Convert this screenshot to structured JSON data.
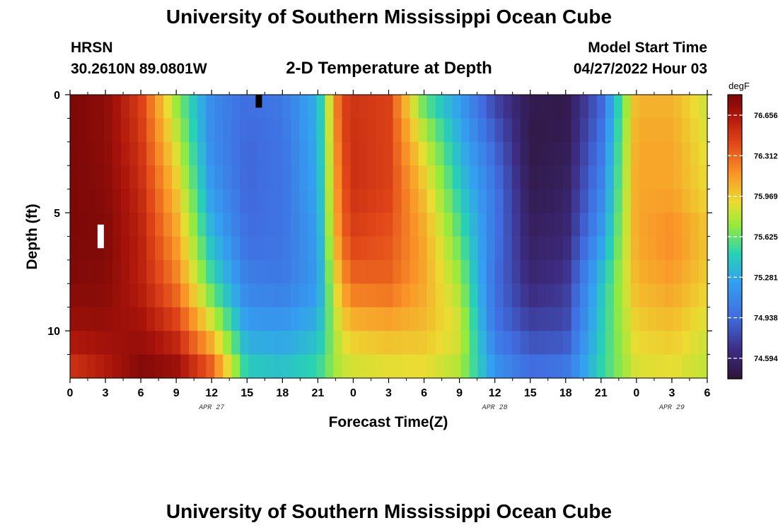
{
  "header": {
    "title": "University of Southern Mississippi Ocean Cube",
    "station": "HRSN",
    "coordinates": "30.2610N  89.0801W",
    "subtitle": "2-D Temperature at Depth",
    "model_start_label": "Model Start Time",
    "model_start_value": "04/27/2022 Hour 03"
  },
  "footer": {
    "title": "University of Southern Mississippi Ocean Cube"
  },
  "chart_data": {
    "type": "heatmap",
    "title": "2-D Temperature at Depth",
    "xlabel": "Forecast Time(Z)",
    "ylabel": "Depth (ft)",
    "x_hours": [
      0,
      54
    ],
    "y_depth_ft": [
      0,
      12
    ],
    "x_tick_labels": [
      "0",
      "3",
      "6",
      "9",
      "12",
      "15",
      "18",
      "21",
      "0",
      "3",
      "6",
      "9",
      "12",
      "15",
      "18",
      "21",
      "0",
      "3",
      "6"
    ],
    "date_labels": [
      {
        "hour": 12,
        "label": "APR 27"
      },
      {
        "hour": 36,
        "label": "APR 28"
      },
      {
        "hour": 51,
        "label": "APR 29"
      }
    ],
    "y_tick_labels": [
      "0",
      "5",
      "10"
    ],
    "colorbar": {
      "unit": "degF",
      "range": [
        74.42,
        76.83
      ],
      "tick_labels": [
        "76.656",
        "76.312",
        "75.969",
        "75.625",
        "75.281",
        "74.938",
        "74.594"
      ]
    },
    "temperature_degF": {
      "depth_rows_ft": [
        0,
        2,
        4,
        6,
        8,
        10,
        12
      ],
      "time_hours": [
        0,
        3,
        6,
        9,
        12,
        15,
        18,
        21,
        23,
        24,
        27,
        30,
        33,
        36,
        39,
        42,
        45,
        48,
        51,
        54
      ],
      "values": [
        [
          76.82,
          76.76,
          76.45,
          75.7,
          75.12,
          74.96,
          75.02,
          75.32,
          76.45,
          76.5,
          76.45,
          75.55,
          75.2,
          74.75,
          74.5,
          74.48,
          74.9,
          76.05,
          76.05,
          75.82
        ],
        [
          76.82,
          76.76,
          76.5,
          75.85,
          75.12,
          74.92,
          74.98,
          75.3,
          76.4,
          76.52,
          76.45,
          75.85,
          75.32,
          74.9,
          74.47,
          74.5,
          75.0,
          76.1,
          76.1,
          75.88
        ],
        [
          76.82,
          76.78,
          76.55,
          76.0,
          75.2,
          74.92,
          74.98,
          75.28,
          76.35,
          76.52,
          76.45,
          76.0,
          75.45,
          75.0,
          74.5,
          74.55,
          75.08,
          76.1,
          76.1,
          75.92
        ],
        [
          76.82,
          76.8,
          76.6,
          76.12,
          75.35,
          74.95,
          74.98,
          75.22,
          76.3,
          76.45,
          76.38,
          76.1,
          75.6,
          75.0,
          74.55,
          74.6,
          75.2,
          76.1,
          76.2,
          76.0
        ],
        [
          76.8,
          76.78,
          76.6,
          76.25,
          75.55,
          75.05,
          75.02,
          75.2,
          76.12,
          76.3,
          76.32,
          76.1,
          75.75,
          74.95,
          74.62,
          74.7,
          75.4,
          76.05,
          76.12,
          75.95
        ],
        [
          76.7,
          76.72,
          76.7,
          76.5,
          75.95,
          75.25,
          75.22,
          75.35,
          75.9,
          76.0,
          76.05,
          76.02,
          75.88,
          75.0,
          74.78,
          74.8,
          75.45,
          75.95,
          76.0,
          75.85
        ],
        [
          76.45,
          76.6,
          76.82,
          76.78,
          76.45,
          75.5,
          75.45,
          75.55,
          75.8,
          75.82,
          75.85,
          75.88,
          75.75,
          75.22,
          75.0,
          75.05,
          75.5,
          75.85,
          75.88,
          75.8
        ]
      ]
    },
    "markers": [
      {
        "hour": 2.6,
        "depth_ft_top": 5.5,
        "depth_ft_bottom": 6.5,
        "color": "#ffffff"
      },
      {
        "hour": 16.0,
        "depth_ft_top": 0.0,
        "depth_ft_bottom": 0.55,
        "color": "#000000"
      }
    ]
  }
}
